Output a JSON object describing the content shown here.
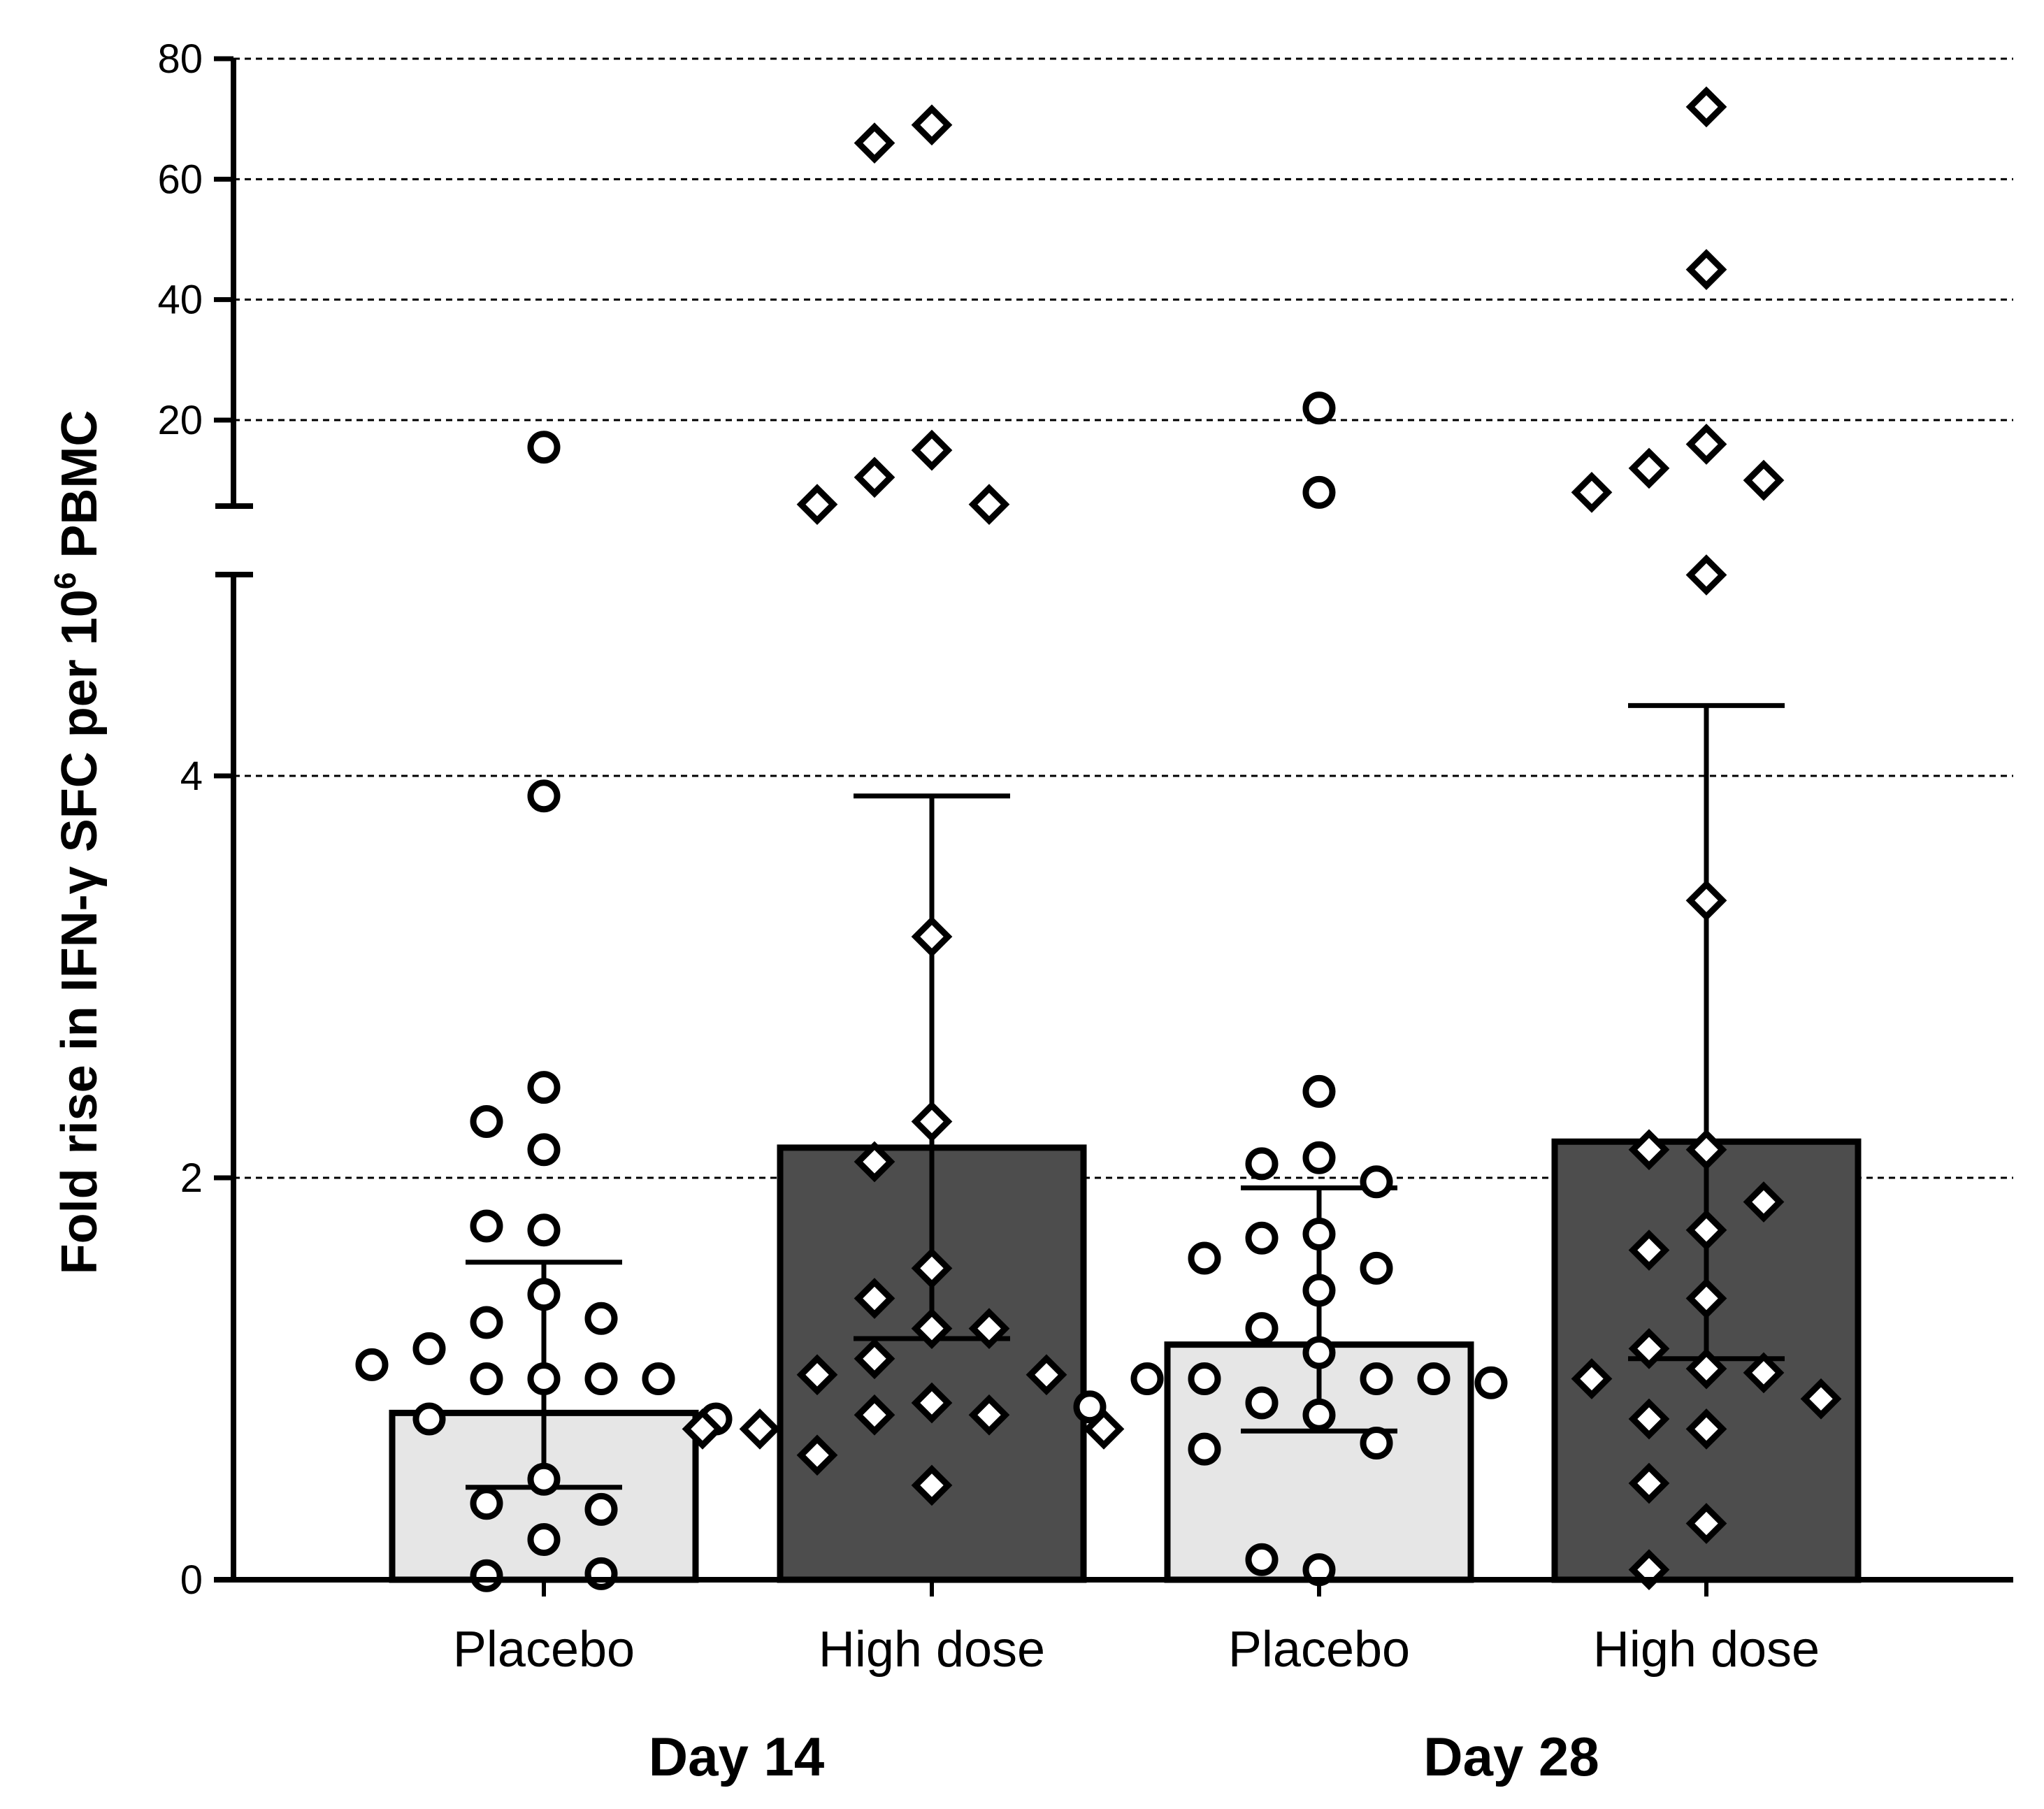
{
  "chart_data": {
    "type": "bar",
    "ylabel_parts": {
      "main": "Fold rise in IFN-γ SFC per 10",
      "sup": "6",
      "tail": " PBMC"
    },
    "axis": {
      "break": true,
      "lower": {
        "ylim": [
          0,
          5
        ],
        "ticks": [
          0,
          2,
          4
        ],
        "tick_labels": [
          "0",
          "2",
          "4"
        ]
      },
      "upper": {
        "ylim": [
          5,
          80
        ],
        "ticks": [
          20,
          40,
          60,
          80
        ],
        "tick_labels": [
          "20",
          "40",
          "60",
          "80"
        ]
      }
    },
    "grid": "dashed-horizontal",
    "categories": [
      "Placebo",
      "High dose",
      "Placebo",
      "High dose"
    ],
    "groups": [
      {
        "label": "Day 14",
        "categories": [
          0,
          1
        ]
      },
      {
        "label": "Day 28",
        "categories": [
          2,
          3
        ]
      }
    ],
    "bars": [
      {
        "category": "Placebo",
        "group": "Day 14",
        "value": 0.83,
        "error_low": 0.46,
        "error_high": 1.58,
        "fill": "#e6e6e6",
        "marker": "circle",
        "points": [
          15.5,
          3.9,
          2.45,
          2.28,
          2.14,
          1.74,
          1.76,
          1.42,
          1.28,
          1.3,
          1.15,
          1.0,
          1.0,
          1.0,
          1.0,
          1.07,
          0.8,
          0.8,
          0.5,
          0.38,
          0.35,
          0.2,
          0.02,
          0.03
        ]
      },
      {
        "category": "High dose",
        "group": "Day 14",
        "value": 2.15,
        "error_low": 1.2,
        "error_high": 3.9,
        "fill": "#4d4d4d",
        "marker": "diamond",
        "points": [
          69,
          66,
          15,
          10.5,
          6,
          6,
          3.2,
          2.28,
          2.08,
          1.55,
          1.4,
          1.25,
          1.25,
          1.1,
          1.02,
          1.02,
          0.88,
          0.82,
          0.82,
          0.75,
          0.75,
          0.75,
          0.62,
          0.47
        ]
      },
      {
        "category": "Placebo",
        "group": "Day 28",
        "value": 1.17,
        "error_low": 0.74,
        "error_high": 1.95,
        "fill": "#e6e6e6",
        "marker": "circle",
        "points": [
          22,
          8,
          2.43,
          2.1,
          2.07,
          1.98,
          1.72,
          1.7,
          1.55,
          1.6,
          1.44,
          1.25,
          1.13,
          1.0,
          1.0,
          1.0,
          1.0,
          0.98,
          0.88,
          0.86,
          0.82,
          0.68,
          0.65,
          0.05,
          0.1
        ]
      },
      {
        "category": "High dose",
        "group": "Day 28",
        "value": 2.18,
        "error_low": 1.1,
        "error_high": 4.35,
        "fill": "#4d4d4d",
        "marker": "diamond",
        "points": [
          72,
          45,
          16,
          12,
          10,
          8,
          5,
          3.38,
          2.14,
          2.14,
          1.88,
          1.74,
          1.64,
          1.4,
          1.15,
          1.05,
          1.03,
          1.0,
          0.9,
          0.8,
          0.75,
          0.48,
          0.28,
          0.05
        ]
      }
    ]
  }
}
